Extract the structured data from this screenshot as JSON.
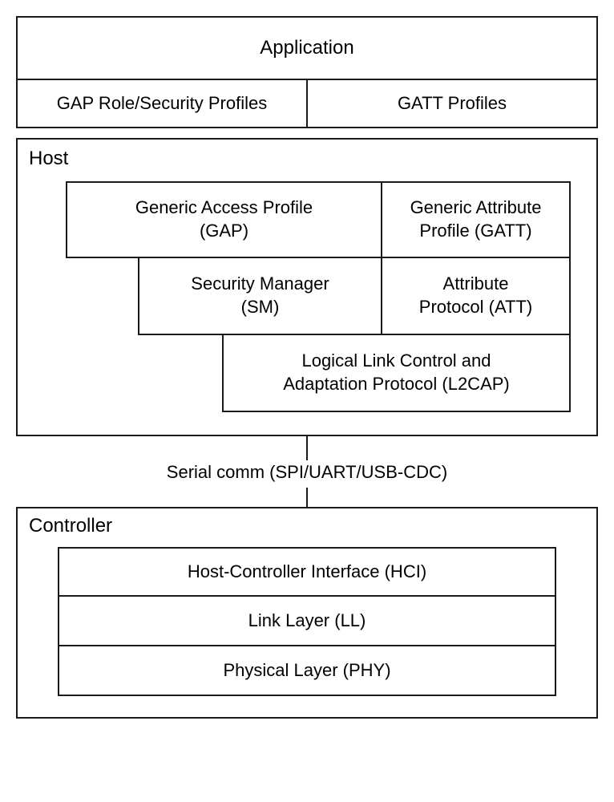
{
  "diagram": {
    "type": "layered-block-diagram",
    "border_color": "#1a1a1a",
    "background_color": "#ffffff",
    "text_color": "#1a1a1a",
    "font_family": "Arial",
    "app": {
      "title": "Application",
      "profiles": {
        "left": "GAP Role/Security Profiles",
        "right": "GATT Profiles"
      }
    },
    "host": {
      "title": "Host",
      "gap": "Generic Access Profile\n(GAP)",
      "gatt": "Generic Attribute\nProfile (GATT)",
      "sm": "Security Manager\n(SM)",
      "att": "Attribute\nProtocol (ATT)",
      "l2cap": "Logical Link Control and\nAdaptation Protocol (L2CAP)"
    },
    "connector": {
      "label": "Serial comm (SPI/UART/USB-CDC)"
    },
    "controller": {
      "title": "Controller",
      "layers": [
        "Host-Controller Interface (HCI)",
        "Link Layer (LL)",
        "Physical Layer (PHY)"
      ]
    }
  }
}
